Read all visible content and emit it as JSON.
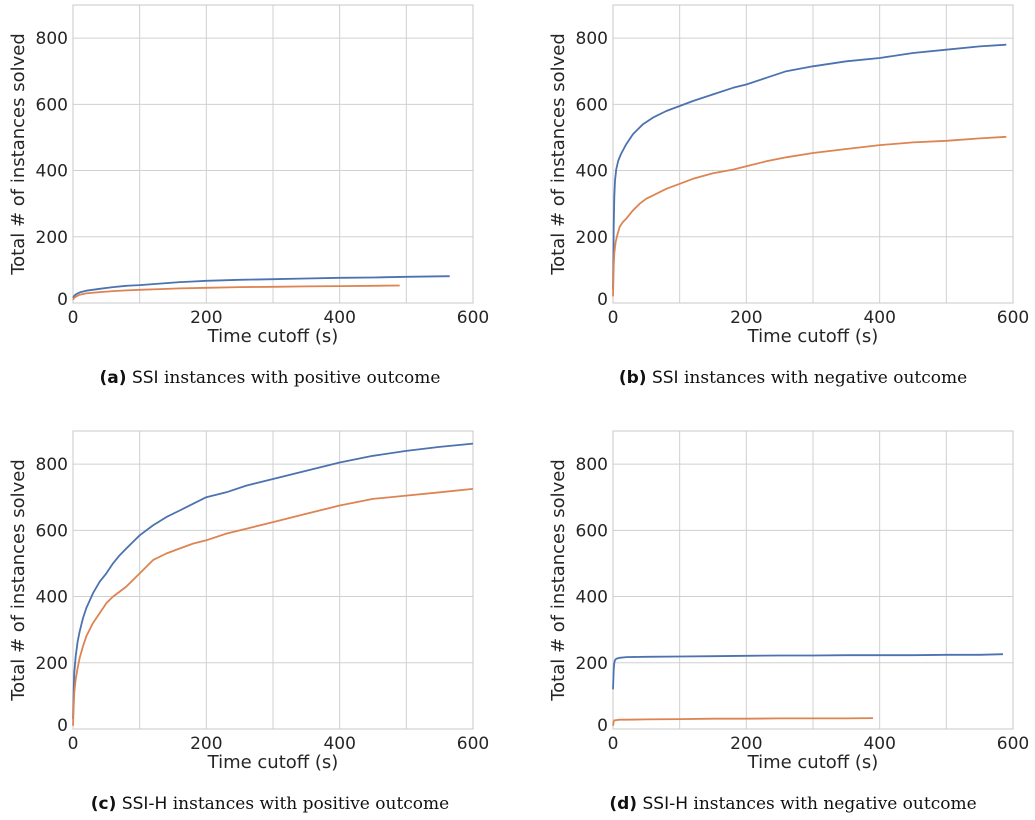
{
  "colors": {
    "series_1": "#4c72b0",
    "series_2": "#dd8452",
    "grid": "#d0d0d0",
    "frame": "#c8c8c8"
  },
  "chart_data": [
    {
      "type": "line",
      "xlabel": "Time cutoff (s)",
      "ylabel": "Total # of instances solved",
      "xlim": [
        0,
        600
      ],
      "ylim": [
        0,
        900
      ],
      "xticks": [
        0,
        200,
        400,
        600
      ],
      "yticks": [
        0,
        200,
        400,
        600,
        800
      ],
      "grid": true,
      "series": [
        {
          "color": "#4c72b0",
          "x": [
            0,
            2,
            5,
            10,
            20,
            40,
            60,
            80,
            100,
            120,
            140,
            160,
            180,
            200,
            250,
            300,
            350,
            400,
            450,
            500,
            565
          ],
          "y": [
            15,
            22,
            27,
            32,
            37,
            43,
            48,
            52,
            54,
            57,
            60,
            63,
            65,
            67,
            70,
            72,
            74,
            76,
            77,
            79,
            81
          ]
        },
        {
          "color": "#dd8452",
          "x": [
            0,
            2,
            5,
            10,
            20,
            40,
            60,
            80,
            100,
            130,
            160,
            200,
            250,
            300,
            350,
            400,
            450,
            490
          ],
          "y": [
            10,
            16,
            20,
            25,
            29,
            33,
            36,
            38,
            40,
            42,
            44,
            46,
            48,
            49,
            50,
            51,
            52,
            53
          ]
        }
      ]
    },
    {
      "type": "line",
      "xlabel": "Time cutoff (s)",
      "ylabel": "Total # of instances solved",
      "xlim": [
        0,
        600
      ],
      "ylim": [
        0,
        900
      ],
      "xticks": [
        0,
        200,
        400,
        600
      ],
      "yticks": [
        0,
        200,
        400,
        600,
        800
      ],
      "grid": true,
      "series": [
        {
          "color": "#4c72b0",
          "x": [
            0,
            1,
            2,
            3,
            5,
            8,
            12,
            20,
            30,
            45,
            60,
            80,
            100,
            120,
            150,
            180,
            200,
            230,
            260,
            300,
            350,
            400,
            450,
            500,
            550,
            590
          ],
          "y": [
            40,
            230,
            320,
            370,
            405,
            430,
            450,
            480,
            510,
            540,
            560,
            580,
            595,
            610,
            630,
            650,
            660,
            680,
            700,
            715,
            730,
            740,
            755,
            765,
            775,
            780
          ]
        },
        {
          "color": "#dd8452",
          "x": [
            0,
            1,
            2,
            4,
            7,
            10,
            15,
            20,
            30,
            40,
            50,
            60,
            80,
            100,
            120,
            150,
            180,
            200,
            230,
            260,
            300,
            350,
            400,
            450,
            500,
            550,
            590
          ],
          "y": [
            20,
            110,
            150,
            185,
            210,
            230,
            245,
            255,
            280,
            300,
            315,
            325,
            345,
            360,
            375,
            392,
            403,
            413,
            428,
            440,
            453,
            465,
            477,
            485,
            490,
            497,
            502
          ]
        }
      ]
    },
    {
      "type": "line",
      "xlabel": "Time cutoff (s)",
      "ylabel": "Total # of instances solved",
      "xlim": [
        0,
        600
      ],
      "ylim": [
        0,
        900
      ],
      "xticks": [
        0,
        200,
        400,
        600
      ],
      "yticks": [
        0,
        200,
        400,
        600,
        800
      ],
      "grid": true,
      "series": [
        {
          "color": "#4c72b0",
          "x": [
            0,
            1,
            2,
            4,
            7,
            10,
            15,
            20,
            30,
            40,
            50,
            60,
            70,
            80,
            90,
            100,
            120,
            140,
            160,
            180,
            200,
            230,
            260,
            300,
            350,
            400,
            450,
            500,
            550,
            600
          ],
          "y": [
            30,
            120,
            170,
            220,
            265,
            295,
            335,
            365,
            410,
            445,
            470,
            500,
            525,
            545,
            565,
            585,
            615,
            640,
            660,
            680,
            700,
            715,
            735,
            755,
            780,
            805,
            825,
            840,
            852,
            862
          ]
        },
        {
          "color": "#dd8452",
          "x": [
            0,
            1,
            2,
            4,
            7,
            10,
            15,
            20,
            30,
            40,
            50,
            60,
            70,
            80,
            90,
            100,
            120,
            140,
            160,
            180,
            200,
            230,
            260,
            300,
            350,
            400,
            450,
            500,
            550,
            600
          ],
          "y": [
            10,
            70,
            110,
            150,
            185,
            215,
            250,
            280,
            320,
            350,
            380,
            400,
            415,
            430,
            450,
            470,
            510,
            530,
            545,
            560,
            570,
            590,
            605,
            625,
            650,
            675,
            695,
            705,
            715,
            725
          ]
        }
      ]
    },
    {
      "type": "line",
      "xlabel": "Time cutoff (s)",
      "ylabel": "Total # of instances solved",
      "xlim": [
        0,
        600
      ],
      "ylim": [
        0,
        900
      ],
      "xticks": [
        0,
        200,
        400,
        600
      ],
      "yticks": [
        0,
        200,
        400,
        600,
        800
      ],
      "grid": true,
      "series": [
        {
          "color": "#4c72b0",
          "x": [
            0,
            1,
            2,
            3,
            5,
            10,
            20,
            50,
            100,
            150,
            200,
            250,
            300,
            350,
            400,
            450,
            500,
            550,
            585
          ],
          "y": [
            120,
            180,
            200,
            208,
            212,
            215,
            217,
            218,
            219,
            220,
            221,
            222,
            222,
            223,
            223,
            223,
            224,
            224,
            226
          ]
        },
        {
          "color": "#dd8452",
          "x": [
            0,
            1,
            2,
            5,
            10,
            20,
            50,
            100,
            150,
            200,
            250,
            300,
            350,
            390
          ],
          "y": [
            10,
            22,
            26,
            27,
            28,
            28,
            29,
            30,
            31,
            31,
            32,
            32,
            32,
            33
          ]
        }
      ]
    }
  ],
  "captions": [
    {
      "tag": "(a)",
      "abbr": "SSI",
      "text": "instances with positive outcome"
    },
    {
      "tag": "(b)",
      "abbr": "SSI",
      "text": "instances with negative outcome"
    },
    {
      "tag": "(c)",
      "abbr": "SSI-H",
      "text": "instances with positive outcome"
    },
    {
      "tag": "(d)",
      "abbr": "SSI-H",
      "text": "instances with negative outcome"
    }
  ]
}
